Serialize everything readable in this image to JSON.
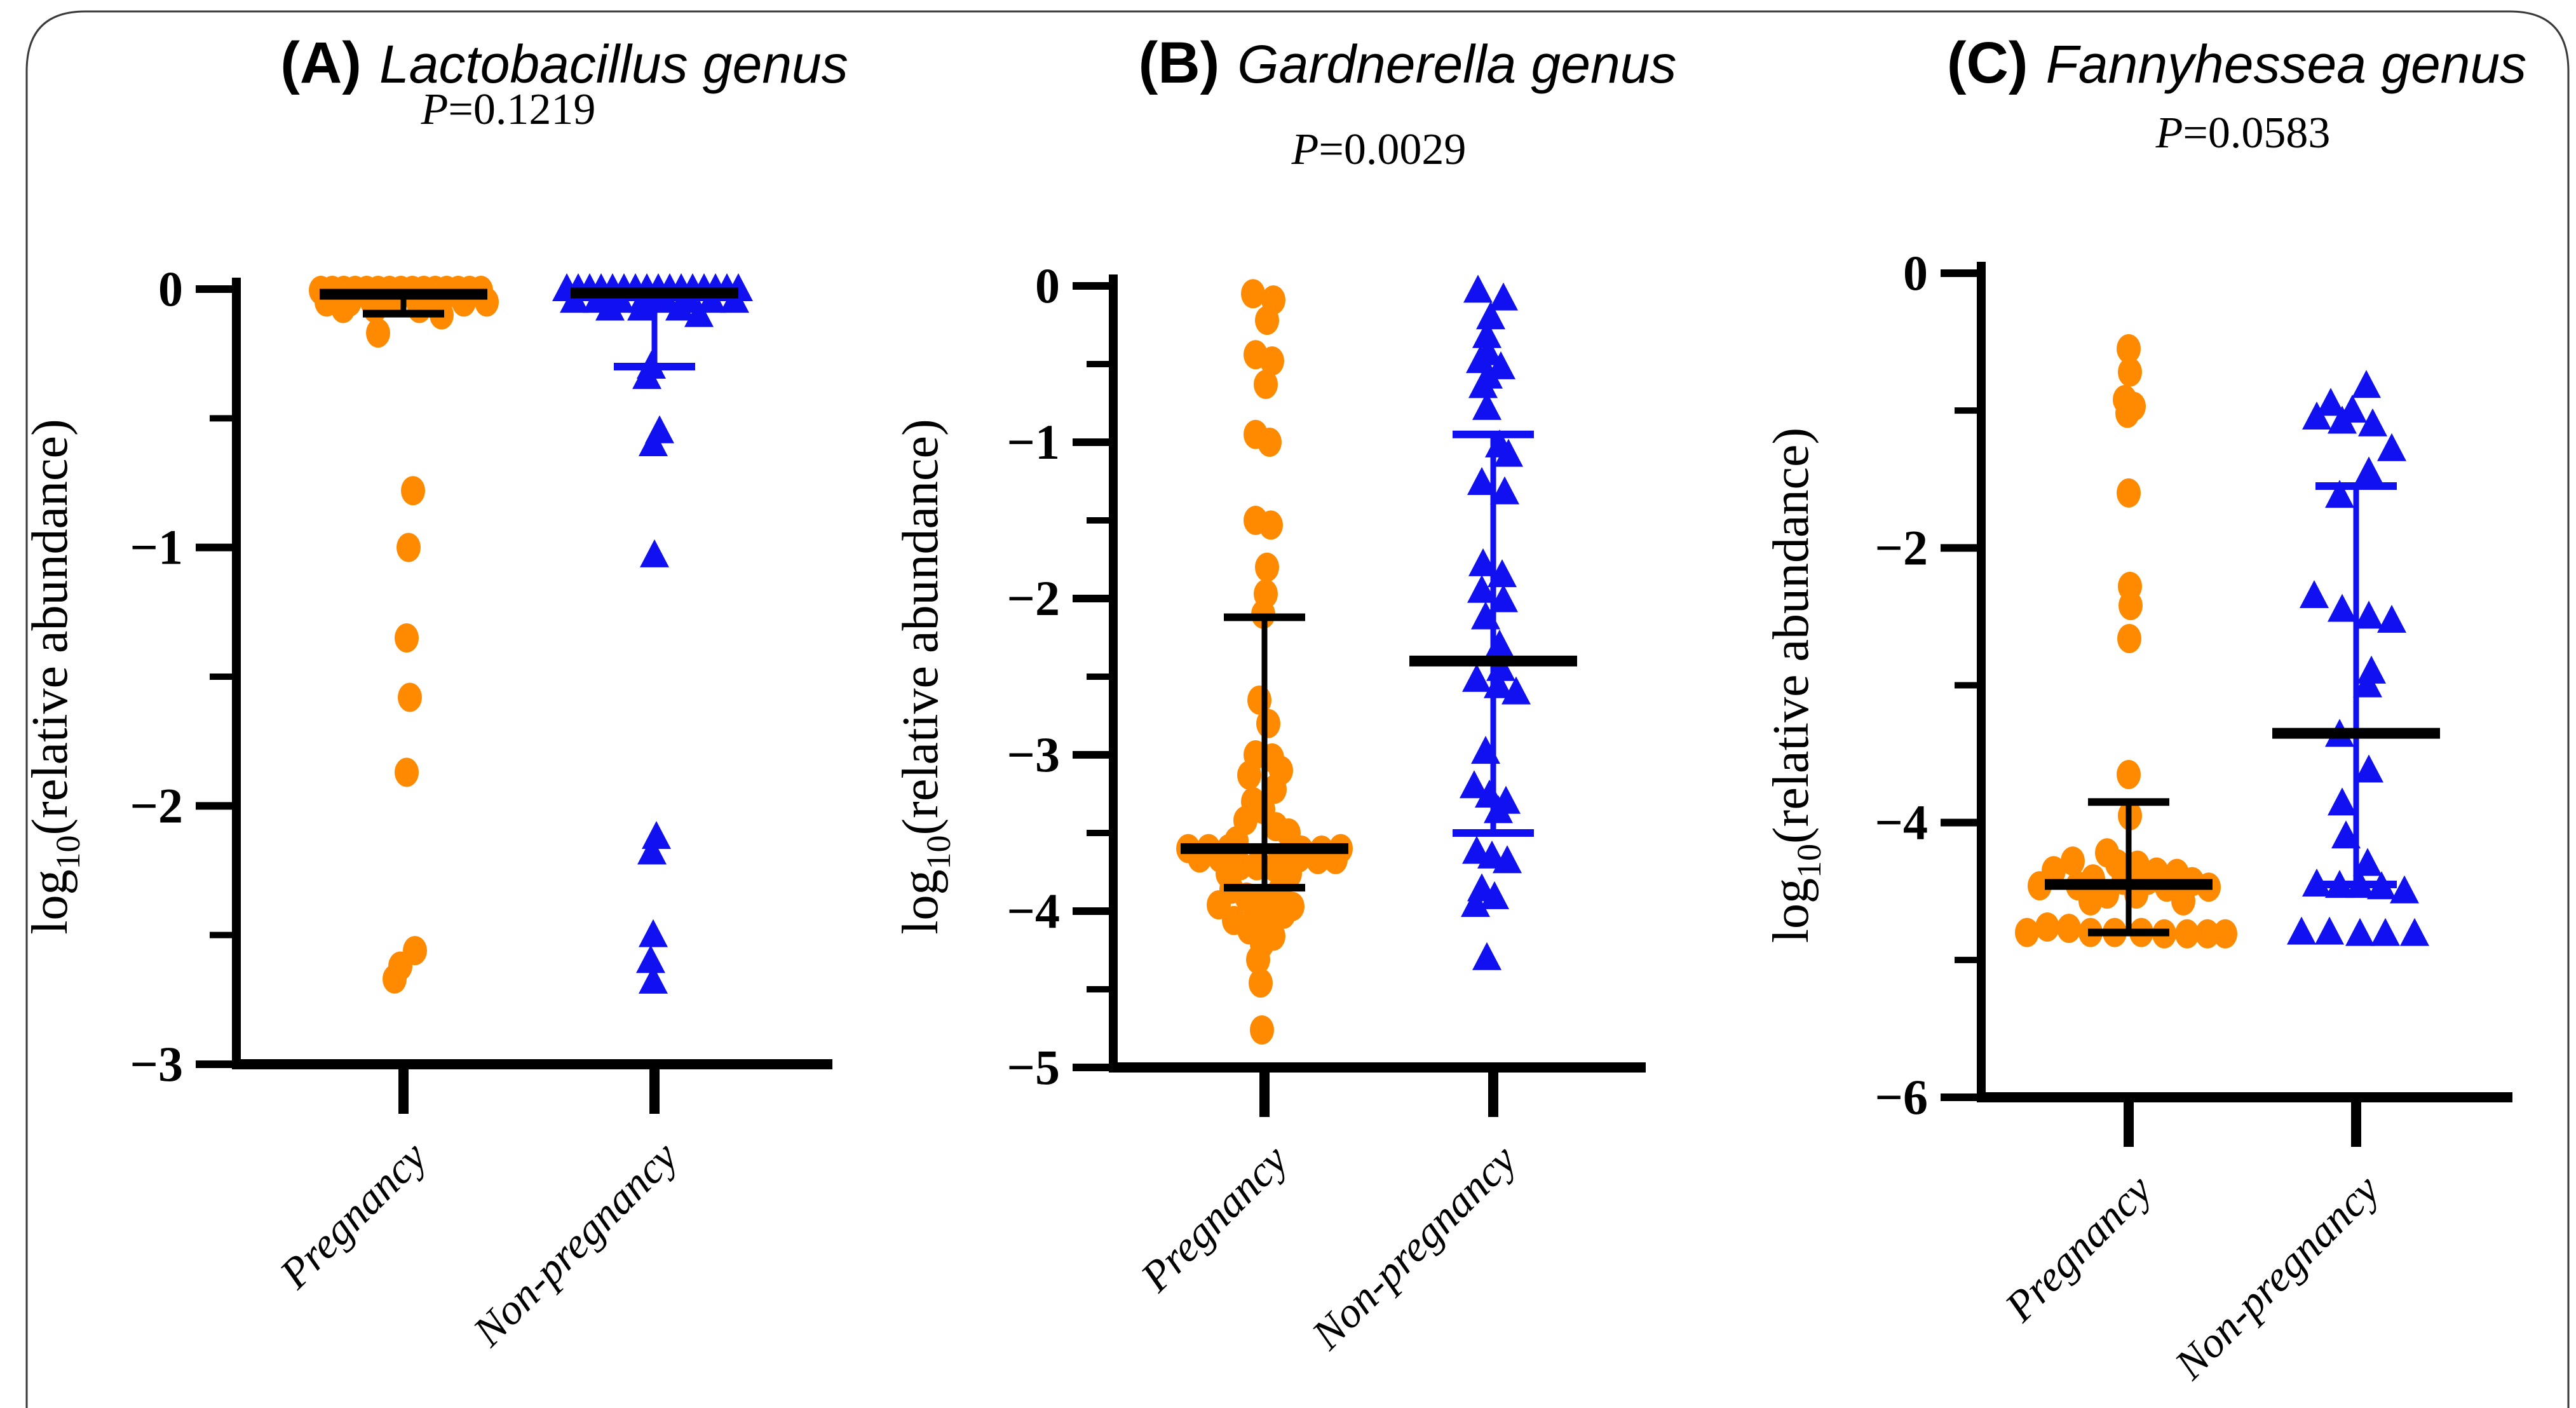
{
  "figure": {
    "background": "#FFFFFF",
    "border_color": "#3a3a3a",
    "y_axis_title": {
      "prefix": "log",
      "subscript": "10",
      "suffix": "(relative abundance)"
    },
    "x_categories": [
      "Pregnancy",
      "Non-pregnancy"
    ],
    "colors": {
      "pregnancy": "#FF8A00",
      "non_pregnancy": "#1010F0",
      "mean_bar": "#000000",
      "axis": "#000000"
    }
  },
  "chart_data": [
    {
      "type": "scatter",
      "panel_label": "(A)",
      "title": "Lactobacillus genus",
      "p_prefix": "P",
      "p_rest": "=0.1219",
      "ylim": [
        -3,
        0
      ],
      "yticks_major": [
        {
          "v": 0,
          "label": "0"
        },
        {
          "v": -1,
          "label": "−1"
        },
        {
          "v": -2,
          "label": "−2"
        },
        {
          "v": -3,
          "label": "−3"
        }
      ],
      "yticks_minor": [
        -0.5,
        -1.5,
        -2.5
      ],
      "groups": [
        {
          "name": "Pregnancy",
          "marker": "circle",
          "color": "#FF8A00",
          "mean": -0.02,
          "err_top": null,
          "err_bottom": -0.095,
          "err_color": "#000000",
          "points": [
            [
              -0.005,
              -130
            ],
            [
              -0.005,
              -112
            ],
            [
              -0.005,
              -94
            ],
            [
              -0.005,
              -76
            ],
            [
              -0.005,
              -58
            ],
            [
              -0.005,
              -40
            ],
            [
              -0.005,
              -22
            ],
            [
              -0.005,
              -4
            ],
            [
              -0.005,
              14
            ],
            [
              -0.005,
              32
            ],
            [
              -0.005,
              50
            ],
            [
              -0.005,
              68
            ],
            [
              -0.005,
              86
            ],
            [
              -0.005,
              104
            ],
            [
              -0.005,
              122
            ],
            [
              -0.05,
              -121
            ],
            [
              -0.05,
              -85
            ],
            [
              -0.05,
              -49
            ],
            [
              -0.05,
              -13
            ],
            [
              -0.05,
              23
            ],
            [
              -0.05,
              59
            ],
            [
              -0.05,
              95
            ],
            [
              -0.05,
              131
            ],
            [
              -0.075,
              -95
            ],
            [
              -0.075,
              -45
            ],
            [
              -0.075,
              25
            ],
            [
              -0.1,
              60
            ],
            [
              -0.17,
              -40
            ],
            [
              -0.78,
              15
            ],
            [
              -1.0,
              8
            ],
            [
              -1.35,
              5
            ],
            [
              -1.58,
              10
            ],
            [
              -1.87,
              5
            ],
            [
              -2.56,
              18
            ],
            [
              -2.62,
              -5
            ],
            [
              -2.67,
              -14
            ]
          ]
        },
        {
          "name": "Non-pregnancy",
          "marker": "triangle",
          "color": "#1010F0",
          "mean": -0.015,
          "err_top": null,
          "err_bottom": -0.3,
          "err_color": "#1010F0",
          "points": [
            [
              0.0,
              -138
            ],
            [
              0.0,
              -120
            ],
            [
              0.0,
              -102
            ],
            [
              0.0,
              -84
            ],
            [
              0.0,
              -66
            ],
            [
              0.0,
              -48
            ],
            [
              0.0,
              -30
            ],
            [
              0.0,
              -12
            ],
            [
              0.0,
              6
            ],
            [
              0.0,
              24
            ],
            [
              0.0,
              42
            ],
            [
              0.0,
              60
            ],
            [
              0.0,
              78
            ],
            [
              0.0,
              96
            ],
            [
              0.0,
              114
            ],
            [
              0.0,
              132
            ],
            [
              -0.045,
              -126
            ],
            [
              -0.045,
              -90
            ],
            [
              -0.045,
              -54
            ],
            [
              -0.045,
              -18
            ],
            [
              -0.045,
              18
            ],
            [
              -0.045,
              54
            ],
            [
              -0.045,
              90
            ],
            [
              -0.045,
              126
            ],
            [
              -0.075,
              -70
            ],
            [
              -0.075,
              -20
            ],
            [
              -0.075,
              40
            ],
            [
              -0.1,
              70
            ],
            [
              -0.3,
              -5
            ],
            [
              -0.34,
              -12
            ],
            [
              -0.55,
              8
            ],
            [
              -0.6,
              -2
            ],
            [
              -1.03,
              0
            ],
            [
              -2.12,
              3
            ],
            [
              -2.18,
              -4
            ],
            [
              -2.5,
              -2
            ],
            [
              -2.6,
              -6
            ],
            [
              -2.68,
              -2
            ]
          ]
        }
      ]
    },
    {
      "type": "scatter",
      "panel_label": "(B)",
      "title": "Gardnerella genus",
      "p_prefix": "P",
      "p_rest": "=0.0029",
      "ylim": [
        -5,
        0
      ],
      "yticks_major": [
        {
          "v": 0,
          "label": "0"
        },
        {
          "v": -1,
          "label": "−1"
        },
        {
          "v": -2,
          "label": "−2"
        },
        {
          "v": -3,
          "label": "−3"
        },
        {
          "v": -4,
          "label": "−4"
        },
        {
          "v": -5,
          "label": "−5"
        }
      ],
      "yticks_minor": [
        -0.5,
        -1.5,
        -2.5,
        -3.5,
        -4.5
      ],
      "groups": [
        {
          "name": "Pregnancy",
          "marker": "circle",
          "color": "#FF8A00",
          "mean": -3.6,
          "err_top": -2.12,
          "err_bottom": -3.85,
          "err_color": "#000000",
          "points": [
            [
              -0.05,
              -18
            ],
            [
              -0.09,
              14
            ],
            [
              -0.22,
              4
            ],
            [
              -0.44,
              -14
            ],
            [
              -0.48,
              12
            ],
            [
              -0.63,
              2
            ],
            [
              -0.95,
              -14
            ],
            [
              -1.0,
              8
            ],
            [
              -1.5,
              -14
            ],
            [
              -1.53,
              10
            ],
            [
              -1.8,
              4
            ],
            [
              -1.97,
              2
            ],
            [
              -2.1,
              -2
            ],
            [
              -2.65,
              -8
            ],
            [
              -2.8,
              6
            ],
            [
              -3.0,
              -14
            ],
            [
              -3.02,
              12
            ],
            [
              -3.1,
              26
            ],
            [
              -3.13,
              -24
            ],
            [
              -3.22,
              16
            ],
            [
              -3.3,
              -18
            ],
            [
              -3.35,
              -2
            ],
            [
              -3.42,
              -30
            ],
            [
              -3.46,
              18
            ],
            [
              -3.5,
              38
            ],
            [
              -3.55,
              -44
            ],
            [
              -3.6,
              -120
            ],
            [
              -3.6,
              -88
            ],
            [
              -3.6,
              -56
            ],
            [
              -3.61,
              58
            ],
            [
              -3.61,
              90
            ],
            [
              -3.6,
              120
            ],
            [
              -3.66,
              -102
            ],
            [
              -3.66,
              -70
            ],
            [
              -3.66,
              24
            ],
            [
              -3.66,
              54
            ],
            [
              -3.67,
              84
            ],
            [
              -3.67,
              112
            ],
            [
              -3.71,
              -38
            ],
            [
              -3.71,
              -12
            ],
            [
              -3.72,
              16
            ],
            [
              -3.76,
              -58
            ],
            [
              -3.76,
              40
            ],
            [
              -3.86,
              -52
            ],
            [
              -3.87,
              24
            ],
            [
              -3.91,
              -28
            ],
            [
              -3.92,
              6
            ],
            [
              -3.96,
              -72
            ],
            [
              -3.97,
              44
            ],
            [
              -4.01,
              -14
            ],
            [
              -4.02,
              30
            ],
            [
              -4.06,
              -48
            ],
            [
              -4.07,
              10
            ],
            [
              -4.12,
              -24
            ],
            [
              -4.16,
              14
            ],
            [
              -4.21,
              -4
            ],
            [
              -4.31,
              -10
            ],
            [
              -4.46,
              -6
            ],
            [
              -4.76,
              -4
            ]
          ]
        },
        {
          "name": "Non-pregnancy",
          "marker": "triangle",
          "color": "#1010F0",
          "mean": -2.4,
          "err_top": -0.95,
          "err_bottom": -3.5,
          "err_color": "#1010F0",
          "points": [
            [
              -0.03,
              -24
            ],
            [
              -0.08,
              16
            ],
            [
              -0.2,
              -4
            ],
            [
              -0.32,
              -10
            ],
            [
              -0.43,
              -8
            ],
            [
              -0.48,
              -20
            ],
            [
              -0.52,
              12
            ],
            [
              -0.58,
              -8
            ],
            [
              -0.64,
              -16
            ],
            [
              -0.78,
              -10
            ],
            [
              -1.02,
              10
            ],
            [
              -1.08,
              24
            ],
            [
              -1.26,
              -18
            ],
            [
              -1.32,
              18
            ],
            [
              -1.78,
              -16
            ],
            [
              -1.85,
              14
            ],
            [
              -1.95,
              -18
            ],
            [
              -2.01,
              16
            ],
            [
              -2.12,
              -12
            ],
            [
              -2.3,
              10
            ],
            [
              -2.45,
              12
            ],
            [
              -2.52,
              -26
            ],
            [
              -2.56,
              8
            ],
            [
              -2.6,
              36
            ],
            [
              -2.98,
              -12
            ],
            [
              -3.2,
              -30
            ],
            [
              -3.26,
              -6
            ],
            [
              -3.3,
              20
            ],
            [
              -3.36,
              8
            ],
            [
              -3.62,
              -26
            ],
            [
              -3.65,
              -2
            ],
            [
              -3.68,
              22
            ],
            [
              -3.86,
              -18
            ],
            [
              -3.91,
              2
            ],
            [
              -3.96,
              -28
            ],
            [
              -4.3,
              -10
            ]
          ]
        }
      ]
    },
    {
      "type": "scatter",
      "panel_label": "(C)",
      "title": "Fannyhessea genus",
      "p_prefix": "P",
      "p_rest": "=0.0583",
      "ylim": [
        -6,
        0
      ],
      "yticks_major": [
        {
          "v": 0,
          "label": "0"
        },
        {
          "v": -2,
          "label": "−2"
        },
        {
          "v": -4,
          "label": "−4"
        },
        {
          "v": -6,
          "label": "−6"
        }
      ],
      "yticks_minor": [
        -1,
        -3,
        -5
      ],
      "groups": [
        {
          "name": "Pregnancy",
          "marker": "circle",
          "color": "#FF8A00",
          "mean": -4.45,
          "err_top": -3.85,
          "err_bottom": -4.8,
          "err_color": "#000000",
          "points": [
            [
              -0.55,
              0
            ],
            [
              -0.72,
              2
            ],
            [
              -0.92,
              -6
            ],
            [
              -0.97,
              8
            ],
            [
              -1.02,
              -2
            ],
            [
              -1.6,
              0
            ],
            [
              -2.28,
              2
            ],
            [
              -2.42,
              3
            ],
            [
              -2.66,
              1
            ],
            [
              -3.65,
              0
            ],
            [
              -3.95,
              2
            ],
            [
              -4.22,
              -34
            ],
            [
              -4.28,
              -88
            ],
            [
              -4.3,
              -18
            ],
            [
              -4.31,
              14
            ],
            [
              -4.35,
              -118
            ],
            [
              -4.36,
              44
            ],
            [
              -4.37,
              76
            ],
            [
              -4.41,
              -56
            ],
            [
              -4.42,
              -8
            ],
            [
              -4.42,
              30
            ],
            [
              -4.43,
              100
            ],
            [
              -4.46,
              -140
            ],
            [
              -4.46,
              -80
            ],
            [
              -4.47,
              60
            ],
            [
              -4.47,
              126
            ],
            [
              -4.52,
              -34
            ],
            [
              -4.52,
              12
            ],
            [
              -4.57,
              -60
            ],
            [
              -4.57,
              86
            ],
            [
              -4.76,
              -128
            ],
            [
              -4.77,
              -94
            ],
            [
              -4.8,
              -160
            ],
            [
              -4.8,
              -60
            ],
            [
              -4.8,
              -22
            ],
            [
              -4.8,
              20
            ],
            [
              -4.81,
              56
            ],
            [
              -4.81,
              92
            ],
            [
              -4.81,
              124
            ],
            [
              -4.81,
              152
            ]
          ]
        },
        {
          "name": "Non-pregnancy",
          "marker": "triangle",
          "color": "#1010F0",
          "mean": -3.35,
          "err_top": -1.55,
          "err_bottom": -4.45,
          "err_color": "#1010F0",
          "points": [
            [
              -0.82,
              16
            ],
            [
              -0.95,
              -40
            ],
            [
              -1.0,
              -6
            ],
            [
              -1.05,
              -62
            ],
            [
              -1.08,
              -22
            ],
            [
              -1.1,
              26
            ],
            [
              -1.28,
              56
            ],
            [
              -1.45,
              20
            ],
            [
              -1.62,
              -26
            ],
            [
              -2.35,
              -66
            ],
            [
              -2.45,
              -22
            ],
            [
              -2.5,
              20
            ],
            [
              -2.53,
              56
            ],
            [
              -2.9,
              24
            ],
            [
              -3.0,
              18
            ],
            [
              -3.36,
              -26
            ],
            [
              -3.62,
              20
            ],
            [
              -3.86,
              -22
            ],
            [
              -4.1,
              -16
            ],
            [
              -4.3,
              18
            ],
            [
              -4.45,
              -62
            ],
            [
              -4.46,
              -26
            ],
            [
              -4.46,
              6
            ],
            [
              -4.47,
              40
            ],
            [
              -4.5,
              76
            ],
            [
              -4.8,
              -86
            ],
            [
              -4.8,
              -42
            ],
            [
              -4.81,
              6
            ],
            [
              -4.81,
              46
            ],
            [
              -4.81,
              92
            ]
          ]
        }
      ]
    }
  ]
}
